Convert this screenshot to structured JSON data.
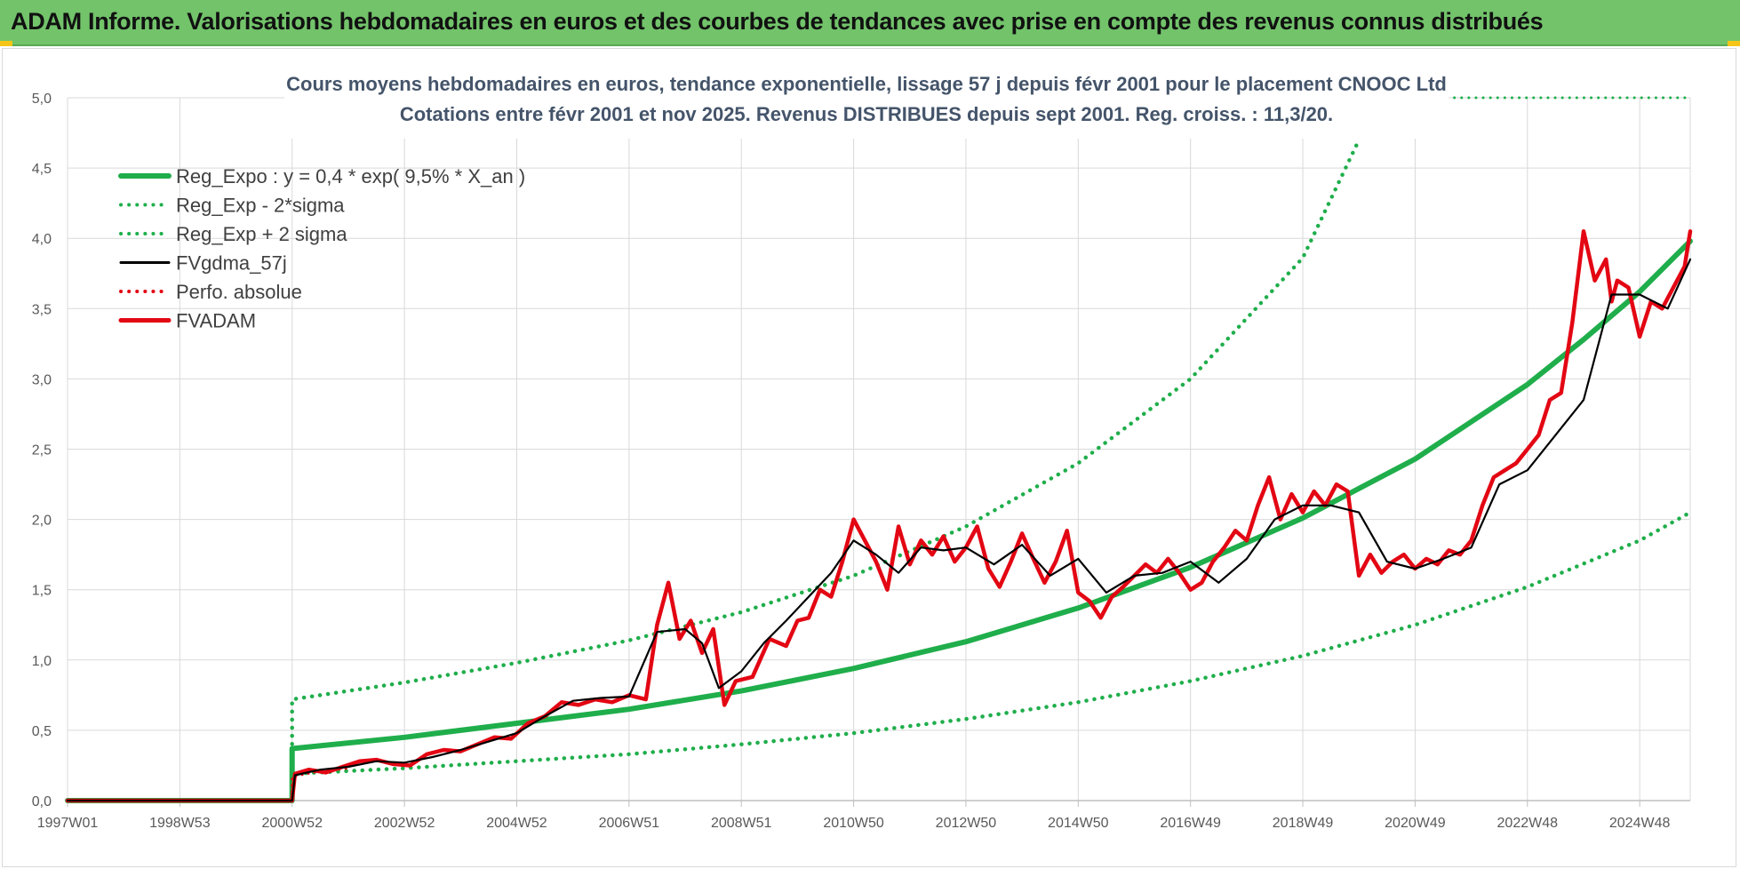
{
  "header": {
    "title": "ADAM Informe. Valorisations hebdomadaires en euros et des courbes de tendances avec prise en compte des revenus connus distribués"
  },
  "colors": {
    "banner": "#72c36a",
    "trend": "#1fae4b",
    "fv57": "#000000",
    "fvadam": "#e30613",
    "grid": "#d9d9d9"
  },
  "chart_data": {
    "type": "line",
    "title_line1": "Cours moyens hebdomadaires en euros, tendance exponentielle, lissage 57 j depuis févr 2001 pour le placement CNOOC Ltd",
    "title_line2": "Cotations entre févr 2001 et nov 2025. Revenus DISTRIBUES depuis sept 2001. Reg. croiss. : 11,3/20.",
    "xlabel": "",
    "ylabel": "",
    "x_range": [
      1997.0,
      2025.9
    ],
    "ylim": [
      0,
      5
    ],
    "yticks": [
      "0,0",
      "0,5",
      "1,0",
      "1,5",
      "2,0",
      "2,5",
      "3,0",
      "3,5",
      "4,0",
      "4,5",
      "5,0"
    ],
    "xticks": [
      {
        "label": "1997W01",
        "x": 1997.0
      },
      {
        "label": "1998W53",
        "x": 1999.0
      },
      {
        "label": "2000W52",
        "x": 2001.0
      },
      {
        "label": "2002W52",
        "x": 2003.0
      },
      {
        "label": "2004W52",
        "x": 2005.0
      },
      {
        "label": "2006W51",
        "x": 2007.0
      },
      {
        "label": "2008W51",
        "x": 2009.0
      },
      {
        "label": "2010W50",
        "x": 2011.0
      },
      {
        "label": "2012W50",
        "x": 2013.0
      },
      {
        "label": "2014W50",
        "x": 2015.0
      },
      {
        "label": "2016W49",
        "x": 2017.0
      },
      {
        "label": "2018W49",
        "x": 2019.0
      },
      {
        "label": "2020W49",
        "x": 2021.0
      },
      {
        "label": "2022W48",
        "x": 2023.0
      },
      {
        "label": "2024W48",
        "x": 2025.0
      }
    ],
    "legend": [
      {
        "key": "reg_expo",
        "label": "Reg_Expo : y = 0,4 * exp( 9,5% *  X_an )",
        "style": "solid",
        "color": "#1fae4b"
      },
      {
        "key": "reg_minus",
        "label": "Reg_Exp - 2*sigma",
        "style": "dotted",
        "color": "#1fae4b"
      },
      {
        "key": "reg_plus",
        "label": "Reg_Exp + 2 sigma",
        "style": "dotted",
        "color": "#1fae4b"
      },
      {
        "key": "fv57",
        "label": "FVgdma_57j",
        "style": "solid",
        "color": "#000000"
      },
      {
        "key": "perfo",
        "label": "Perfo. absolue",
        "style": "dotted",
        "color": "#e30613"
      },
      {
        "key": "fvadam",
        "label": "FVADAM",
        "style": "solid-thick",
        "color": "#e30613"
      }
    ],
    "series": [
      {
        "name": "Reg_Expo",
        "key": "reg_expo",
        "x": [
          1997.0,
          2001.0,
          2001.0,
          2003,
          2005,
          2007,
          2009,
          2011,
          2013,
          2015,
          2017,
          2019,
          2021,
          2023,
          2024,
          2025.0,
          2025.9
        ],
        "y": [
          0,
          0,
          0.37,
          0.45,
          0.55,
          0.65,
          0.78,
          0.94,
          1.13,
          1.37,
          1.66,
          2.01,
          2.43,
          2.96,
          3.28,
          3.62,
          3.98
        ]
      },
      {
        "name": "Reg_Exp - 2*sigma",
        "key": "reg_minus",
        "x": [
          2001.0,
          2001.0,
          2003,
          2005,
          2007,
          2009,
          2011,
          2013,
          2015,
          2017,
          2019,
          2021,
          2023,
          2025.0,
          2025.9
        ],
        "y": [
          0,
          0.19,
          0.23,
          0.28,
          0.33,
          0.4,
          0.48,
          0.58,
          0.7,
          0.85,
          1.03,
          1.25,
          1.52,
          1.85,
          2.05
        ]
      },
      {
        "name": "Reg_Exp + 2 sigma",
        "key": "reg_plus",
        "x": [
          2001.0,
          2001.0,
          2003,
          2005,
          2007,
          2009,
          2011,
          2013,
          2015,
          2017,
          2019.0,
          2020.0
        ],
        "y": [
          0,
          0.72,
          0.84,
          0.98,
          1.14,
          1.34,
          1.6,
          1.95,
          2.4,
          3.0,
          3.86,
          4.7
        ]
      },
      {
        "name": "Reg_Exp + 2 sigma (cap)",
        "key": "reg_plus_cap",
        "x": [
          2021.7,
          2025.9
        ],
        "y": [
          5.0,
          5.0
        ]
      },
      {
        "name": "FVgdma_57j",
        "key": "fv57",
        "x": [
          1997.0,
          2001.0,
          2001.05,
          2001.5,
          2002.0,
          2002.5,
          2003.0,
          2003.5,
          2004.0,
          2004.5,
          2005.0,
          2005.5,
          2006.0,
          2006.5,
          2007.0,
          2007.5,
          2008.0,
          2008.3,
          2008.6,
          2009.0,
          2009.4,
          2009.8,
          2010.2,
          2010.6,
          2011.0,
          2011.4,
          2011.8,
          2012.2,
          2012.6,
          2013.0,
          2013.5,
          2014.0,
          2014.5,
          2015.0,
          2015.5,
          2016.0,
          2016.5,
          2017.0,
          2017.5,
          2018.0,
          2018.5,
          2019.0,
          2019.5,
          2020.0,
          2020.5,
          2021.0,
          2021.5,
          2022.0,
          2022.5,
          2023.0,
          2023.5,
          2024.0,
          2024.5,
          2025.0,
          2025.5,
          2025.9
        ],
        "y": [
          0,
          0,
          0.18,
          0.22,
          0.24,
          0.28,
          0.27,
          0.31,
          0.36,
          0.42,
          0.48,
          0.6,
          0.71,
          0.73,
          0.74,
          1.2,
          1.22,
          1.12,
          0.8,
          0.92,
          1.12,
          1.28,
          1.45,
          1.62,
          1.85,
          1.75,
          1.62,
          1.8,
          1.78,
          1.8,
          1.68,
          1.82,
          1.6,
          1.72,
          1.48,
          1.6,
          1.62,
          1.7,
          1.55,
          1.72,
          2.0,
          2.1,
          2.1,
          2.05,
          1.7,
          1.65,
          1.72,
          1.8,
          2.25,
          2.35,
          2.6,
          2.85,
          3.6,
          3.6,
          3.5,
          3.85
        ]
      },
      {
        "name": "Perfo. absolue",
        "key": "perfo",
        "x": [
          1997.0,
          2001.0,
          2001.0,
          2001.5,
          2002.0
        ],
        "y": [
          0,
          0,
          0.17,
          0.21,
          0.23
        ]
      },
      {
        "name": "FVADAM",
        "key": "fvadam",
        "x": [
          1997.0,
          2001.0,
          2001.05,
          2001.3,
          2001.6,
          2001.9,
          2002.2,
          2002.5,
          2002.8,
          2003.1,
          2003.4,
          2003.7,
          2004.0,
          2004.3,
          2004.6,
          2004.9,
          2005.2,
          2005.5,
          2005.8,
          2006.1,
          2006.4,
          2006.7,
          2007.0,
          2007.3,
          2007.5,
          2007.7,
          2007.9,
          2008.1,
          2008.3,
          2008.5,
          2008.7,
          2008.9,
          2009.2,
          2009.5,
          2009.8,
          2010.0,
          2010.2,
          2010.4,
          2010.6,
          2010.8,
          2011.0,
          2011.2,
          2011.4,
          2011.6,
          2011.8,
          2012.0,
          2012.2,
          2012.4,
          2012.6,
          2012.8,
          2013.0,
          2013.2,
          2013.4,
          2013.6,
          2013.8,
          2014.0,
          2014.2,
          2014.4,
          2014.6,
          2014.8,
          2015.0,
          2015.2,
          2015.4,
          2015.6,
          2015.8,
          2016.0,
          2016.2,
          2016.4,
          2016.6,
          2016.8,
          2017.0,
          2017.2,
          2017.4,
          2017.6,
          2017.8,
          2018.0,
          2018.2,
          2018.4,
          2018.6,
          2018.8,
          2019.0,
          2019.2,
          2019.4,
          2019.6,
          2019.8,
          2020.0,
          2020.2,
          2020.4,
          2020.6,
          2020.8,
          2021.0,
          2021.2,
          2021.4,
          2021.6,
          2021.8,
          2022.0,
          2022.2,
          2022.4,
          2022.6,
          2022.8,
          2023.0,
          2023.2,
          2023.4,
          2023.6,
          2023.8,
          2024.0,
          2024.2,
          2024.4,
          2024.5,
          2024.6,
          2024.8,
          2025.0,
          2025.2,
          2025.4,
          2025.6,
          2025.8,
          2025.9
        ],
        "y": [
          0,
          0,
          0.19,
          0.22,
          0.2,
          0.24,
          0.28,
          0.29,
          0.26,
          0.25,
          0.33,
          0.36,
          0.35,
          0.4,
          0.45,
          0.44,
          0.55,
          0.6,
          0.7,
          0.68,
          0.72,
          0.7,
          0.75,
          0.72,
          1.25,
          1.55,
          1.15,
          1.28,
          1.05,
          1.22,
          0.68,
          0.85,
          0.88,
          1.15,
          1.1,
          1.28,
          1.3,
          1.5,
          1.45,
          1.7,
          2.0,
          1.85,
          1.7,
          1.5,
          1.95,
          1.68,
          1.85,
          1.75,
          1.88,
          1.7,
          1.8,
          1.95,
          1.65,
          1.52,
          1.7,
          1.9,
          1.72,
          1.55,
          1.7,
          1.92,
          1.48,
          1.42,
          1.3,
          1.45,
          1.52,
          1.6,
          1.68,
          1.62,
          1.72,
          1.62,
          1.5,
          1.55,
          1.7,
          1.8,
          1.92,
          1.85,
          2.1,
          2.3,
          2.0,
          2.18,
          2.05,
          2.2,
          2.1,
          2.25,
          2.2,
          1.6,
          1.75,
          1.62,
          1.7,
          1.75,
          1.65,
          1.72,
          1.68,
          1.78,
          1.75,
          1.85,
          2.1,
          2.3,
          2.35,
          2.4,
          2.5,
          2.6,
          2.85,
          2.9,
          3.4,
          4.05,
          3.7,
          3.85,
          3.55,
          3.7,
          3.65,
          3.3,
          3.55,
          3.5,
          3.65,
          3.8,
          4.05
        ]
      }
    ]
  }
}
